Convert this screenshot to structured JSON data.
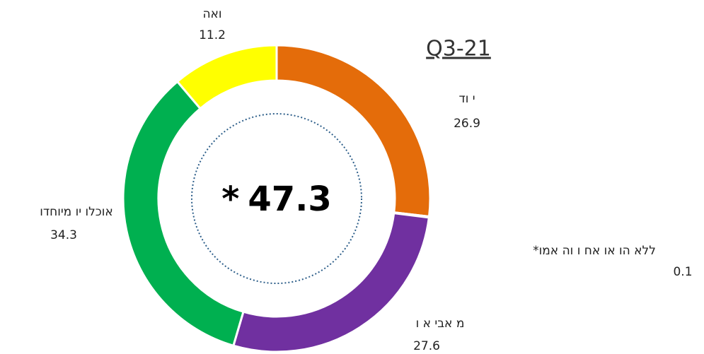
{
  "chart_data": {
    "type": "donut",
    "title": "Q3-21",
    "categories": [
      "י וד",
      "*ללא הו או אח ו וה אמו",
      "מ אבי א ו",
      "אוכלו יו מיוחדו",
      "ואה"
    ],
    "values": [
      26.9,
      0.1,
      27.6,
      34.3,
      11.2
    ],
    "colors": [
      "#e46c0a",
      "#7f7f7f",
      "#7030a0",
      "#00b050",
      "#ffff00"
    ],
    "center_marker": "*",
    "center_value": 47.3
  }
}
